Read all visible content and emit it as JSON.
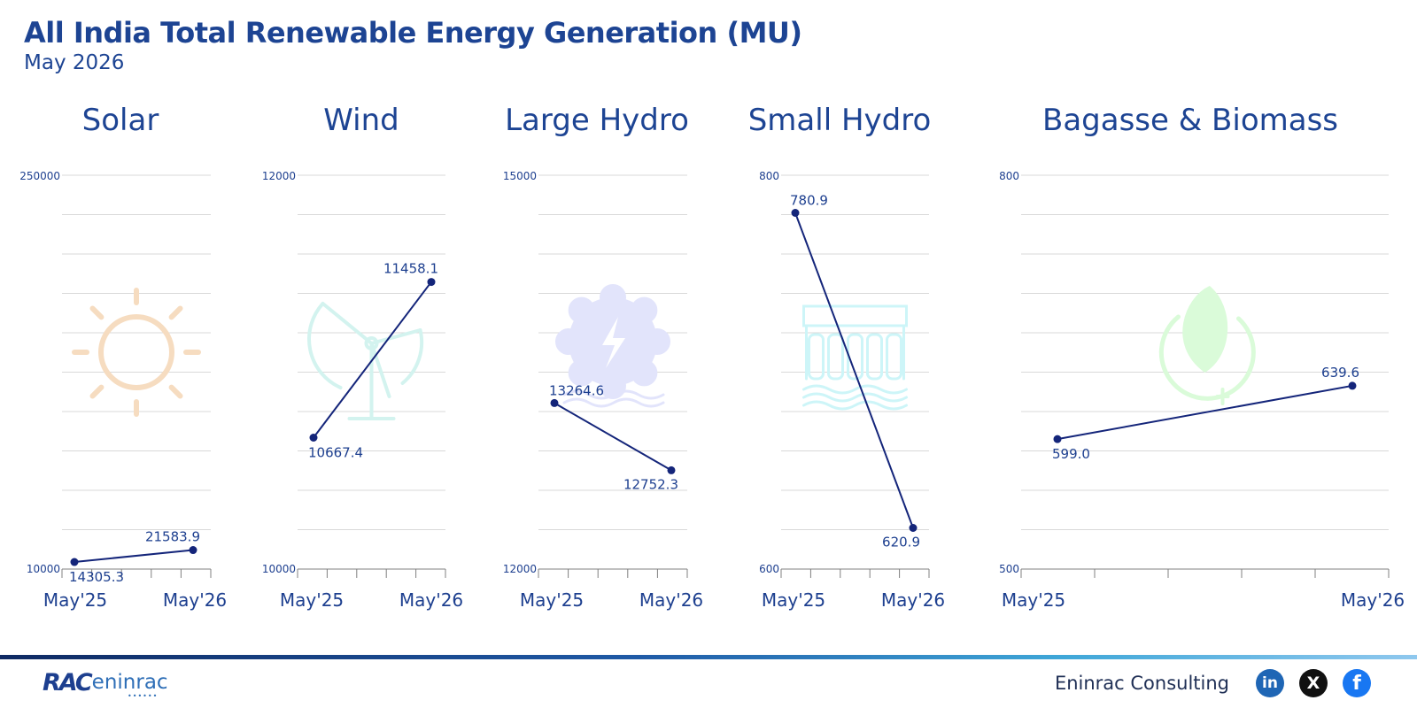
{
  "title": "All India Total Renewable Energy Generation (MU)",
  "subtitle": "May 2026",
  "colors": {
    "line": "#14257a",
    "title": "#1d4493",
    "grid": "#d9d9d9"
  },
  "chart_data": [
    {
      "type": "line",
      "title": "Solar",
      "icon": "sun-icon",
      "icon_color": "#f6dcc0",
      "x": [
        "May'25",
        "May'26"
      ],
      "xlabels": [
        "May'25",
        "May'26"
      ],
      "values": [
        14305.3,
        21583.9
      ],
      "labels": [
        "14305.3",
        "21583.9"
      ],
      "ylim": [
        10000,
        250000
      ],
      "ytick_labels": [
        "10000",
        "250000"
      ],
      "grid": true,
      "xticks": 6
    },
    {
      "type": "line",
      "title": "Wind",
      "icon": "wind-turbine-icon",
      "icon_color": "#d3f3ef",
      "x": [
        "May'25",
        "May'26"
      ],
      "xlabels": [
        "May'25",
        "May'26"
      ],
      "values": [
        10667.4,
        11458.1
      ],
      "labels": [
        "10667.4",
        "11458.1"
      ],
      "ylim": [
        10000,
        12000
      ],
      "ytick_labels": [
        "10000",
        "12000"
      ],
      "grid": true,
      "xticks": 6
    },
    {
      "type": "line",
      "title": "Large Hydro",
      "icon": "hydro-gear-icon",
      "icon_color": "#e2e4fb",
      "x": [
        "May'25",
        "May'26"
      ],
      "xlabels": [
        "May'25",
        "May'26"
      ],
      "values": [
        13264.6,
        12752.3
      ],
      "labels": [
        "13264.6",
        "12752.3"
      ],
      "ylim": [
        12000,
        15000
      ],
      "ytick_labels": [
        "12000",
        "15000"
      ],
      "grid": true,
      "xticks": 6
    },
    {
      "type": "line",
      "title": "Small Hydro",
      "icon": "dam-icon",
      "icon_color": "#cdf5f8",
      "x": [
        "May'25",
        "May'26"
      ],
      "xlabels": [
        "May'25",
        "May'26"
      ],
      "values": [
        780.9,
        620.9
      ],
      "labels": [
        "780.9",
        "620.9"
      ],
      "ylim": [
        600,
        800
      ],
      "ytick_labels": [
        "600",
        "800"
      ],
      "grid": true,
      "xticks": 6
    },
    {
      "type": "line",
      "title": "Bagasse & Biomass",
      "icon": "biomass-leaf-icon",
      "icon_color": "#dafbd9",
      "x": [
        "May'25",
        "May'26"
      ],
      "xlabels": [
        "May'25",
        "May'26"
      ],
      "values": [
        599.0,
        639.6
      ],
      "labels": [
        "599.0",
        "639.6"
      ],
      "ylim": [
        500,
        800
      ],
      "ytick_labels": [
        "500",
        "800"
      ],
      "grid": true,
      "xticks": 6
    }
  ],
  "footer": {
    "logo_text_rac": "RAC",
    "logo_text_brand": "eninrac",
    "company": "Eninrac Consulting",
    "social": [
      {
        "name": "linkedin-icon",
        "glyph": "in"
      },
      {
        "name": "x-icon",
        "glyph": "X"
      },
      {
        "name": "facebook-icon",
        "glyph": "f"
      }
    ]
  }
}
